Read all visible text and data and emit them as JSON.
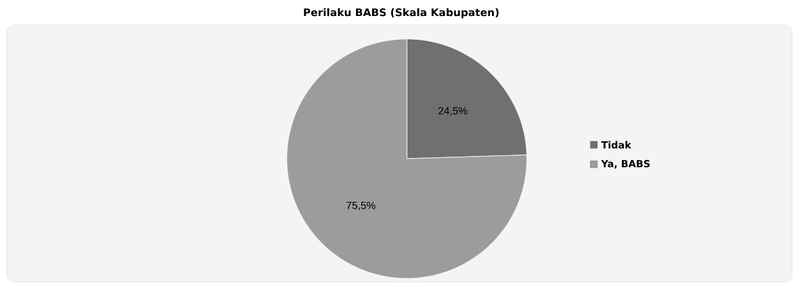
{
  "chart_data": {
    "type": "pie",
    "title": "Perilaku BABS (Skala Kabupaten)",
    "categories": [
      "Tidak",
      "Ya, BABS"
    ],
    "values": [
      24.5,
      75.5
    ],
    "colors": [
      "#707070",
      "#9c9c9c"
    ],
    "value_labels": [
      "24,5%",
      "75,5%"
    ],
    "legend": "right"
  }
}
